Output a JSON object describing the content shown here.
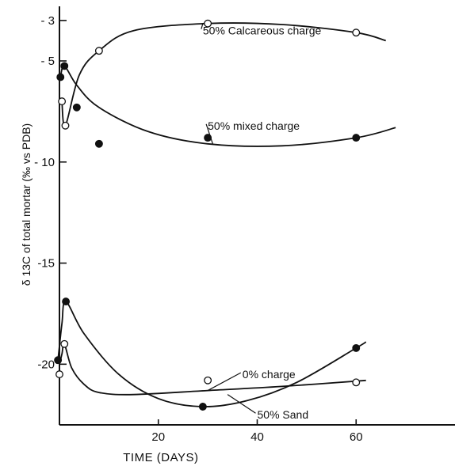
{
  "chart_data": {
    "type": "scatter",
    "title": "",
    "xlabel": "TIME (DAYS)",
    "ylabel": "δ 13C of total mortar (‰ vs PDB)",
    "xlim": [
      0,
      80
    ],
    "ylim": [
      -23,
      -2.3
    ],
    "grid": false,
    "xticks": [
      20,
      40,
      60
    ],
    "yticks": [
      {
        "value": -3,
        "label": "- 3"
      },
      {
        "value": -5,
        "label": "- 5"
      },
      {
        "value": -10,
        "label": "- 10"
      },
      {
        "value": -15,
        "label": "-15"
      },
      {
        "value": -20,
        "label": "-20"
      }
    ],
    "series": [
      {
        "name": "50% Calcareous charge",
        "marker": "open",
        "x": [
          0.5,
          1.2,
          8,
          30,
          60
        ],
        "y": [
          -7.0,
          -8.2,
          -4.5,
          -3.15,
          -3.6
        ],
        "curve_x": [
          0.5,
          1.2,
          4,
          8,
          15,
          30,
          45,
          60,
          66
        ],
        "curve_y": [
          -7.0,
          -8.2,
          -5.7,
          -4.5,
          -3.5,
          -3.15,
          -3.2,
          -3.6,
          -4.0
        ]
      },
      {
        "name": "50% mixed charge",
        "marker": "filled",
        "x": [
          0.2,
          1.0,
          3.5,
          8,
          30,
          60
        ],
        "y": [
          -5.8,
          -5.25,
          -7.3,
          -9.1,
          -8.8,
          -8.8
        ],
        "curve_x": [
          0,
          0.2,
          1.0,
          3.5,
          8,
          18,
          30,
          45,
          60,
          68
        ],
        "curve_y": [
          -6.0,
          -5.8,
          -5.25,
          -6.2,
          -7.3,
          -8.5,
          -9.1,
          -9.2,
          -8.8,
          -8.3
        ]
      },
      {
        "name": "0% charge",
        "marker": "open",
        "x": [
          0,
          1.0,
          30,
          60
        ],
        "y": [
          -20.5,
          -19.0,
          -20.8,
          -20.9
        ],
        "curve_x": [
          0,
          0.5,
          1.0,
          2.5,
          5,
          8,
          15,
          30,
          45,
          62
        ],
        "curve_y": [
          -20.0,
          -19.5,
          -19.0,
          -20.2,
          -21.0,
          -21.4,
          -21.5,
          -21.3,
          -21.1,
          -20.8
        ]
      },
      {
        "name": "50% Sand",
        "marker": "filled",
        "x": [
          -0.3,
          1.3,
          29,
          60
        ],
        "y": [
          -19.8,
          -16.9,
          -22.1,
          -19.2
        ],
        "curve_x": [
          -0.3,
          0.5,
          1.3,
          5,
          12,
          20,
          29,
          38,
          48,
          60,
          62
        ],
        "curve_y": [
          -19.8,
          -18.0,
          -16.9,
          -18.5,
          -20.5,
          -21.7,
          -22.1,
          -21.8,
          -20.9,
          -19.2,
          -18.9
        ]
      }
    ],
    "annotations": [
      {
        "text": "50% Calcareous charge",
        "x": 29,
        "y": -3.5,
        "arrow_to": [
          29,
          -3.15
        ]
      },
      {
        "text": "50% mixed charge",
        "x": 30,
        "y": -8.2,
        "arrow_to": [
          31,
          -9.1
        ]
      },
      {
        "text": "0% charge",
        "x": 37,
        "y": -20.5,
        "arrow_to": [
          30,
          -21.3
        ]
      },
      {
        "text": "50% Sand",
        "x": 40,
        "y": -22.5,
        "arrow_to": [
          34,
          -21.5
        ]
      }
    ]
  }
}
